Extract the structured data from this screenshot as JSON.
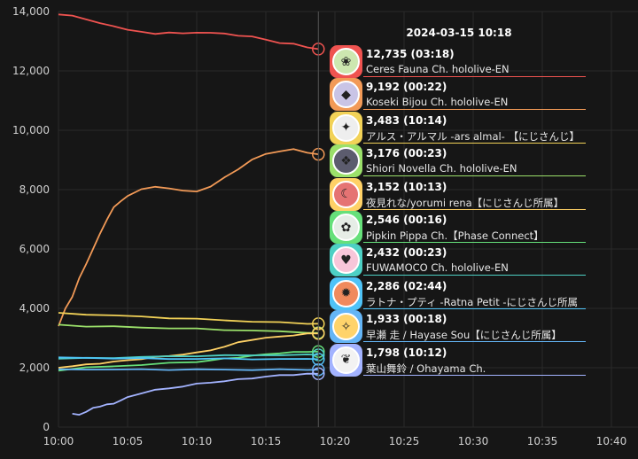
{
  "chart_data": {
    "type": "line",
    "title": "",
    "xlabel": "",
    "ylabel": "",
    "ylim": [
      0,
      14000
    ],
    "y_ticks": [
      "0",
      "2,000",
      "4,000",
      "6,000",
      "8,000",
      "10,000",
      "12,000",
      "14,000"
    ],
    "x_ticks": [
      "10:00",
      "10:05",
      "10:10",
      "10:15",
      "10:20",
      "10:25",
      "10:30",
      "10:35",
      "10:40"
    ],
    "xlim_minutes": [
      0,
      40
    ],
    "cursor_minute": 18.8,
    "grid": true,
    "series": [
      {
        "name": "Ceres Fauna Ch. hololive-EN",
        "color": "#ef5350",
        "x": [
          0,
          1,
          2,
          3,
          4,
          5,
          6,
          7,
          8,
          9,
          10,
          11,
          12,
          13,
          14,
          15,
          16,
          17,
          18,
          18.8
        ],
        "y": [
          13900,
          13850,
          13750,
          13600,
          13500,
          13400,
          13300,
          13250,
          13300,
          13250,
          13300,
          13280,
          13250,
          13200,
          13150,
          13050,
          12950,
          12900,
          12800,
          12735
        ]
      },
      {
        "name": "Koseki Bijou Ch. hololive-EN",
        "color": "#f29a57",
        "x": [
          0,
          0.5,
          1,
          1.5,
          2,
          2.5,
          3,
          3.5,
          4,
          4.5,
          5,
          6,
          7,
          8,
          9,
          10,
          11,
          12,
          13,
          14,
          15,
          16,
          17,
          18,
          18.8
        ],
        "y": [
          3400,
          4000,
          4400,
          5000,
          5500,
          6000,
          6500,
          7000,
          7400,
          7600,
          7800,
          8000,
          8100,
          8050,
          7950,
          7950,
          8100,
          8400,
          8700,
          9000,
          9200,
          9300,
          9350,
          9250,
          9192
        ]
      },
      {
        "name": "アルス・アルマル -ars almal- 【にじさんじ】",
        "color": "#f2d257",
        "x": [
          0,
          2,
          4,
          6,
          8,
          10,
          12,
          14,
          16,
          18,
          18.8
        ],
        "y": [
          3850,
          3800,
          3760,
          3720,
          3680,
          3640,
          3600,
          3560,
          3520,
          3490,
          3483
        ]
      },
      {
        "name": "Shiori Novella Ch. hololive-EN",
        "color": "#9be06a",
        "x": [
          0,
          2,
          4,
          6,
          8,
          10,
          12,
          14,
          16,
          18,
          18.8
        ],
        "y": [
          3450,
          3400,
          3380,
          3360,
          3330,
          3310,
          3280,
          3250,
          3220,
          3190,
          3176
        ]
      },
      {
        "name": "夜見れな/yorumi rena【にじさんじ所属】",
        "color": "#ffd166",
        "x": [
          0,
          1,
          2,
          3,
          4,
          5,
          6,
          7,
          8,
          9,
          10,
          11,
          12,
          13,
          14,
          15,
          16,
          17,
          18,
          18.8
        ],
        "y": [
          2000,
          2050,
          2100,
          2150,
          2200,
          2250,
          2300,
          2350,
          2400,
          2450,
          2500,
          2600,
          2700,
          2850,
          2950,
          3000,
          3050,
          3100,
          3140,
          3152
        ]
      },
      {
        "name": "Pipkin Pippa Ch.【Phase Connect】",
        "color": "#66e07a",
        "x": [
          0,
          2,
          4,
          6,
          8,
          10,
          11,
          12,
          13,
          14,
          15,
          16,
          17,
          18,
          18.8
        ],
        "y": [
          1900,
          2000,
          2050,
          2100,
          2150,
          2200,
          2250,
          2300,
          2350,
          2400,
          2450,
          2500,
          2520,
          2540,
          2546
        ]
      },
      {
        "name": "FUWAMOCO Ch. hololive-EN",
        "color": "#4dd0c4",
        "x": [
          0,
          2,
          4,
          6,
          8,
          10,
          12,
          14,
          16,
          18,
          18.8
        ],
        "y": [
          2300,
          2320,
          2340,
          2360,
          2380,
          2400,
          2410,
          2420,
          2430,
          2430,
          2432
        ]
      },
      {
        "name": "ラトナ・プティ -Ratna Petit -にじさんじ所属",
        "color": "#4fc3f7",
        "x": [
          0,
          2,
          4,
          6,
          8,
          10,
          12,
          14,
          16,
          18,
          18.8
        ],
        "y": [
          2350,
          2330,
          2320,
          2310,
          2300,
          2300,
          2300,
          2295,
          2290,
          2288,
          2286
        ]
      },
      {
        "name": "早瀬 走 / Hayase Sou【にじさんじ所属】",
        "color": "#64b5f6",
        "x": [
          0,
          2,
          4,
          6,
          8,
          10,
          12,
          14,
          16,
          18,
          18.8
        ],
        "y": [
          1950,
          1950,
          1940,
          1940,
          1940,
          1940,
          1935,
          1935,
          1935,
          1933,
          1933
        ]
      },
      {
        "name": "葉山舞鈴 / Ohayama Ch.",
        "color": "#a3b3ff",
        "x": [
          1,
          1.5,
          2,
          2.5,
          3,
          3.5,
          4,
          4.5,
          5,
          6,
          7,
          8,
          9,
          10,
          11,
          12,
          13,
          14,
          15,
          16,
          17,
          18,
          18.8
        ],
        "y": [
          450,
          430,
          500,
          650,
          700,
          750,
          800,
          900,
          1000,
          1150,
          1250,
          1300,
          1380,
          1450,
          1500,
          1550,
          1600,
          1650,
          1700,
          1740,
          1770,
          1790,
          1798
        ]
      }
    ]
  },
  "tooltip": {
    "time": "2024-03-15 10:18",
    "entries": [
      {
        "value": "12,735",
        "duration": "(03:18)",
        "name": "Ceres Fauna Ch. hololive-EN",
        "color": "#ef5350",
        "avatar_bg": "#cde7b0",
        "avatar_icon": "leaf-icon",
        "avatar_glyph": "❀"
      },
      {
        "value": "9,192",
        "duration": "(00:22)",
        "name": "Koseki Bijou Ch. hololive-EN",
        "color": "#f29a57",
        "avatar_bg": "#c9c4e6",
        "avatar_icon": "gem-icon",
        "avatar_glyph": "◆"
      },
      {
        "value": "3,483",
        "duration": "(10:14)",
        "name": "アルス・アルマル -ars almal- 【にじさんじ】",
        "color": "#f2d257",
        "avatar_bg": "#eeeeee",
        "avatar_icon": "star-icon",
        "avatar_glyph": "✦"
      },
      {
        "value": "3,176",
        "duration": "(00:23)",
        "name": "Shiori Novella Ch. hololive-EN",
        "color": "#9be06a",
        "avatar_bg": "#5c5c6e",
        "avatar_icon": "book-icon",
        "avatar_glyph": "❖"
      },
      {
        "value": "3,152",
        "duration": "(10:13)",
        "name": "夜見れな/yorumi rena【にじさんじ所属】",
        "color": "#ffd166",
        "avatar_bg": "#e57373",
        "avatar_icon": "moon-icon",
        "avatar_glyph": "☾"
      },
      {
        "value": "2,546",
        "duration": "(00:16)",
        "name": "Pipkin Pippa Ch.【Phase Connect】",
        "color": "#66e07a",
        "avatar_bg": "#e6ede6",
        "avatar_icon": "bunny-icon",
        "avatar_glyph": "✿"
      },
      {
        "value": "2,432",
        "duration": "(00:23)",
        "name": "FUWAMOCO Ch. hololive-EN",
        "color": "#4dd0c4",
        "avatar_bg": "#f7c6d9",
        "avatar_icon": "paw-icon",
        "avatar_glyph": "♥"
      },
      {
        "value": "2,286",
        "duration": "(02:44)",
        "name": "ラトナ・プティ -Ratna Petit -にじさんじ所属",
        "color": "#4fc3f7",
        "avatar_bg": "#f08a5d",
        "avatar_icon": "flame-icon",
        "avatar_glyph": "✹"
      },
      {
        "value": "1,933",
        "duration": "(00:18)",
        "name": "早瀬 走 / Hayase Sou【にじさんじ所属】",
        "color": "#64b5f6",
        "avatar_bg": "#ffd36b",
        "avatar_icon": "bolt-icon",
        "avatar_glyph": "✧"
      },
      {
        "value": "1,798",
        "duration": "(10:12)",
        "name": "葉山舞鈴 / Ohayama Ch.",
        "color": "#a3b3ff",
        "avatar_bg": "#f2f2f2",
        "avatar_icon": "bell-icon",
        "avatar_glyph": "❦"
      }
    ]
  }
}
